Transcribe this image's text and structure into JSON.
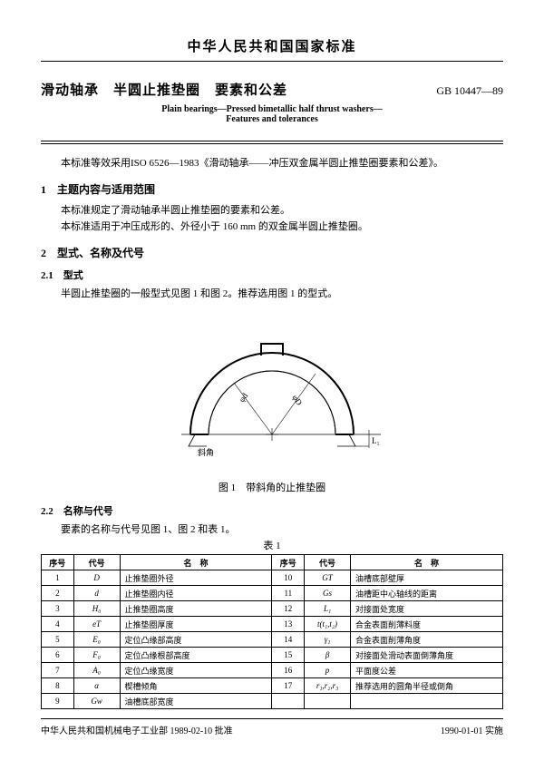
{
  "header": {
    "national_title": "中华人民共和国国家标准",
    "title_cn": "滑动轴承　半圆止推垫圈　要素和公差",
    "code": "GB 10447—89",
    "title_en_1": "Plain bearings—Pressed bimetallic half thrust washers—",
    "title_en_2": "Features and tolerances"
  },
  "intro": "本标准等效采用ISO 6526—1983《滑动轴承——冲压双金属半圆止推垫圈要素和公差》。",
  "sec1": {
    "heading": "1　主题内容与适用范围",
    "p1": "本标准规定了滑动轴承半圆止推垫圈的要素和公差。",
    "p2": "本标准适用于冲压成形的、外径小于 160 mm 的双金属半圆止推垫圈。"
  },
  "sec2": {
    "heading": "2　型式、名称及代号",
    "sub21": "2.1　型式",
    "p21": "半圆止推垫圈的一般型式见图 1 和图 2。推荐选用图 1 的型式。",
    "fig1_caption": "图 1　带斜角的止推垫圈",
    "sub22": "2.2　名称与代号",
    "p22": "要素的名称与代号见图 1、图 2 和表 1。"
  },
  "table1": {
    "caption": "表 1",
    "headers": {
      "seq": "序号",
      "sym": "代号",
      "name": "名　称"
    },
    "left": [
      {
        "n": "1",
        "s": "D",
        "name": "止推垫圈外径"
      },
      {
        "n": "2",
        "s": "d",
        "name": "止推垫圈内径"
      },
      {
        "n": "3",
        "s": "H₀",
        "name": "止推垫圈高度"
      },
      {
        "n": "4",
        "s": "eT",
        "name": "止推垫圈厚度"
      },
      {
        "n": "5",
        "s": "E₀",
        "name": "定位凸缘部高度"
      },
      {
        "n": "6",
        "s": "F₀",
        "name": "定位凸缘根部高度"
      },
      {
        "n": "7",
        "s": "A₀",
        "name": "定位凸缘宽度"
      },
      {
        "n": "8",
        "s": "α",
        "name": "楔槽倾角"
      },
      {
        "n": "9",
        "s": "Gw",
        "name": "油槽底部宽度"
      }
    ],
    "right": [
      {
        "n": "10",
        "s": "GT",
        "name": "油槽底部壁厚"
      },
      {
        "n": "11",
        "s": "Gs",
        "name": "油槽距中心轴线的距离"
      },
      {
        "n": "12",
        "s": "L₁",
        "name": "对接面处宽度"
      },
      {
        "n": "13",
        "s": "t(t₁,t₂)",
        "name": "合金表面削薄料度"
      },
      {
        "n": "14",
        "s": "γ₁",
        "name": "合金表面削薄角度"
      },
      {
        "n": "15",
        "s": "β",
        "name": "对接面处滑动表面倒薄角度"
      },
      {
        "n": "16",
        "s": "p",
        "name": "平面度公差"
      },
      {
        "n": "17",
        "s": "r₁,r₂,r₃",
        "name": "推荐选用的圆角半径或倒角"
      }
    ]
  },
  "footer": {
    "left": "中华人民共和国机械电子工业部 1989-02-10 批准",
    "right": "1990-01-01 实施"
  },
  "figure": {
    "label_angle": "斜角",
    "label_L1": "L₁",
    "label_d": "φd",
    "label_D": "φD"
  }
}
